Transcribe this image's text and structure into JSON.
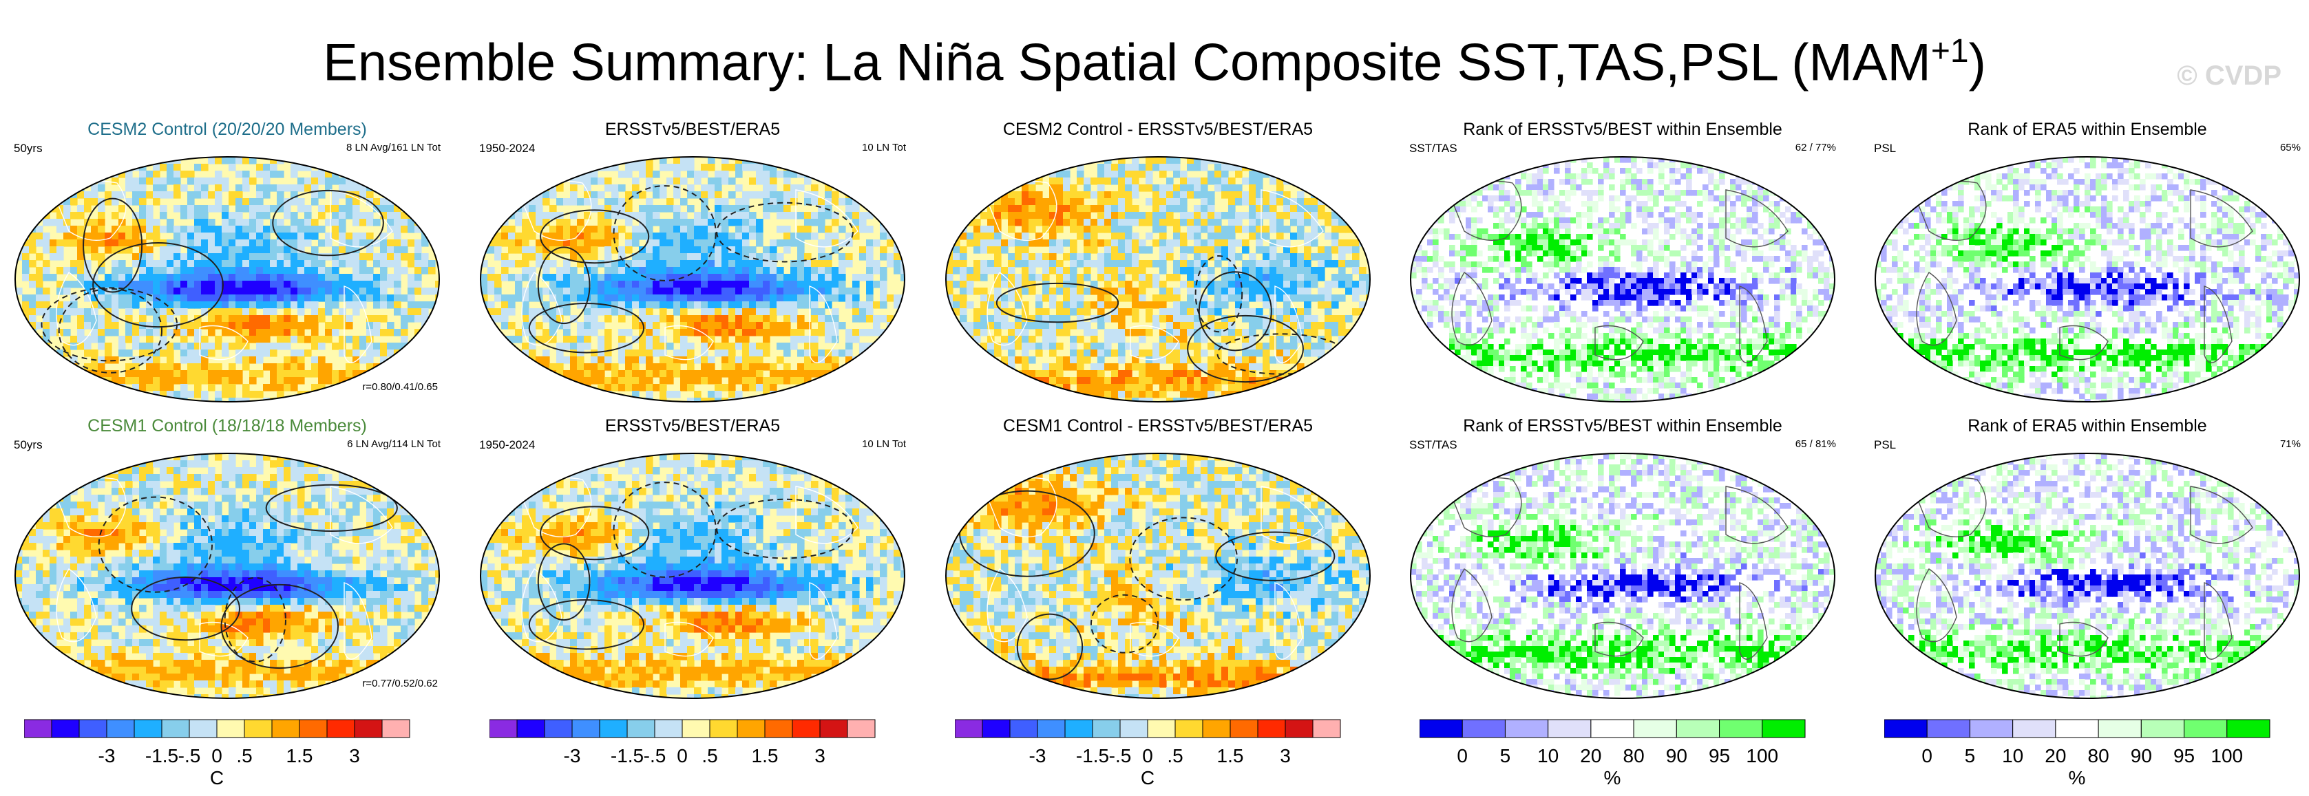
{
  "title": {
    "main": "Ensemble Summary: La Niña Spatial Composite SST,TAS,PSL (MAM",
    "sup": "+1",
    "close": ")",
    "watermark": "© CVDP"
  },
  "colors": {
    "diverging": [
      "#8a2be2",
      "#1f00ff",
      "#3f5fff",
      "#3f8fff",
      "#1fafff",
      "#87ceeb",
      "#c5e2f5",
      "#fffab0",
      "#ffd930",
      "#ffa500",
      "#ff6a00",
      "#ff2a00",
      "#d41414",
      "#ffb0b0"
    ],
    "rank": [
      "#0000ee",
      "#7070ff",
      "#b0b0ff",
      "#e0e0fa",
      "#ffffff",
      "#e6ffe6",
      "#b8ffb8",
      "#70ff70",
      "#00ee00"
    ]
  },
  "panels": [
    {
      "title": "CESM2 Control (20/20/20 Members)",
      "title_color": "#1e6e8a",
      "left": "50yrs",
      "right": "8 LN Avg/161 LN Tot",
      "bottom": "r=0.80/0.41/0.65",
      "type": "composite",
      "seed": 11
    },
    {
      "title": "ERSSTv5/BEST/ERA5",
      "title_color": "#000000",
      "left": "1950-2024",
      "right": "10 LN Tot",
      "bottom": "",
      "type": "composite",
      "seed": 23
    },
    {
      "title": "CESM2 Control - ERSSTv5/BEST/ERA5",
      "title_color": "#000000",
      "left": "",
      "right": "",
      "bottom": "",
      "type": "difference",
      "seed": 37
    },
    {
      "title": "Rank of ERSSTv5/BEST within Ensemble",
      "title_color": "#000000",
      "left": "SST/TAS",
      "right": "62 /  77%",
      "bottom": "",
      "type": "rank",
      "seed": 41
    },
    {
      "title": "Rank of ERA5 within Ensemble",
      "title_color": "#000000",
      "left": "PSL",
      "right": "65%",
      "bottom": "",
      "type": "rank",
      "seed": 53
    },
    {
      "title": "CESM1 Control (18/18/18 Members)",
      "title_color": "#4a8a3a",
      "left": "50yrs",
      "right": "6 LN Avg/114 LN Tot",
      "bottom": "r=0.77/0.52/0.62",
      "type": "composite",
      "seed": 61
    },
    {
      "title": "ERSSTv5/BEST/ERA5",
      "title_color": "#000000",
      "left": "1950-2024",
      "right": "10 LN Tot",
      "bottom": "",
      "type": "composite",
      "seed": 23
    },
    {
      "title": "CESM1 Control - ERSSTv5/BEST/ERA5",
      "title_color": "#000000",
      "left": "",
      "right": "",
      "bottom": "",
      "type": "difference",
      "seed": 79
    },
    {
      "title": "Rank of ERSSTv5/BEST within Ensemble",
      "title_color": "#000000",
      "left": "SST/TAS",
      "right": "65 /  81%",
      "bottom": "",
      "type": "rank",
      "seed": 83
    },
    {
      "title": "Rank of ERA5 within Ensemble",
      "title_color": "#000000",
      "left": "PSL",
      "right": "71%",
      "bottom": "",
      "type": "rank",
      "seed": 97
    }
  ],
  "colorbars": [
    {
      "type": "diverging",
      "ticks": [
        "-3",
        "-1.5",
        "-.5",
        "0",
        ".5",
        "1.5",
        "3"
      ],
      "unit": "C"
    },
    {
      "type": "diverging",
      "ticks": [
        "-3",
        "-1.5",
        "-.5",
        "0",
        ".5",
        "1.5",
        "3"
      ],
      "unit": ""
    },
    {
      "type": "diverging",
      "ticks": [
        "-3",
        "-1.5",
        "-.5",
        "0",
        ".5",
        "1.5",
        "3"
      ],
      "unit": "C"
    },
    {
      "type": "rank",
      "ticks": [
        "0",
        "5",
        "10",
        "20",
        "80",
        "90",
        "95",
        "100"
      ],
      "unit": "%"
    },
    {
      "type": "rank",
      "ticks": [
        "0",
        "5",
        "10",
        "20",
        "80",
        "90",
        "95",
        "100"
      ],
      "unit": "%"
    }
  ],
  "chart_data": {
    "type": "heatmap",
    "title": "Ensemble Summary: La Niña Spatial Composite SST,TAS,PSL (MAM+1)",
    "fields": [
      "SST",
      "TAS",
      "PSL"
    ],
    "colorbar_diverging_ticks": [
      "-3",
      "-1.5",
      "-.5",
      "0",
      ".5",
      "1.5",
      "3"
    ],
    "colorbar_diverging_unit": "C",
    "colorbar_rank_ticks": [
      "0",
      "5",
      "10",
      "20",
      "80",
      "90",
      "95",
      "100"
    ],
    "colorbar_rank_unit": "%",
    "panels": [
      "CESM2 Control (20/20/20 Members)",
      "ERSSTv5/BEST/ERA5",
      "CESM2 Control - ERSSTv5/BEST/ERA5",
      "Rank of ERSSTv5/BEST within Ensemble",
      "Rank of ERA5 within Ensemble",
      "CESM1 Control (18/18/18 Members)",
      "ERSSTv5/BEST/ERA5",
      "CESM1 Control - ERSSTv5/BEST/ERA5",
      "Rank of ERSSTv5/BEST within Ensemble",
      "Rank of ERA5 within Ensemble"
    ],
    "pattern_correlations": {
      "CESM2 Control": "r=0.80/0.41/0.65",
      "CESM1 Control": "r=0.77/0.52/0.62"
    },
    "rank_summaries": {
      "CESM2 SST/TAS": "62 /  77%",
      "CESM2 PSL": "65%",
      "CESM1 SST/TAS": "65 /  81%",
      "CESM1 PSL": "71%"
    },
    "la_nina_counts": {
      "CESM2": "8 LN Avg/161 LN Tot",
      "CESM1": "6 LN Avg/114 LN Tot",
      "Observations": "10 LN Tot"
    }
  }
}
